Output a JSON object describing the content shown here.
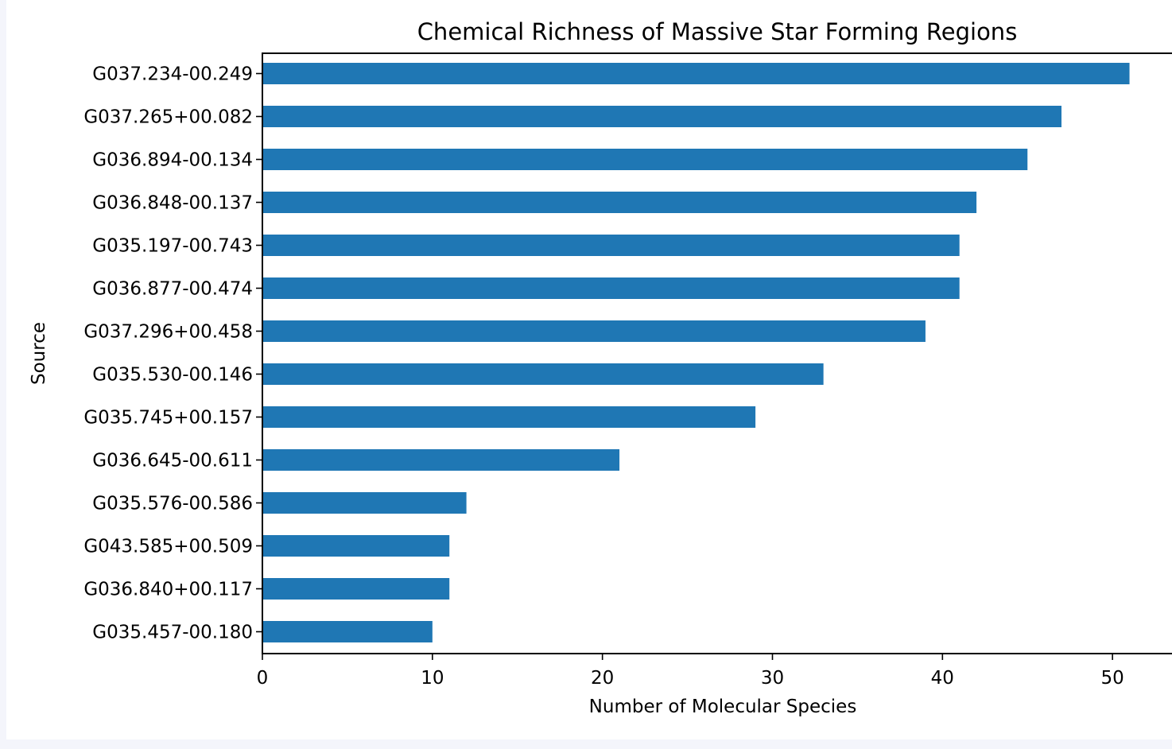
{
  "chart_data": {
    "type": "bar",
    "orientation": "horizontal",
    "title": "Chemical Richness of Massive Star Forming Regions",
    "xlabel": "Number of Molecular Species",
    "ylabel": "Source",
    "xlim": [
      0,
      53.5
    ],
    "xticks": [
      0,
      10,
      20,
      30,
      40,
      50
    ],
    "grid": false,
    "bar_color": "#1f77b4",
    "categories": [
      "G037.234-00.249",
      "G037.265+00.082",
      "G036.894-00.134",
      "G036.848-00.137",
      "G035.197-00.743",
      "G036.877-00.474",
      "G037.296+00.458",
      "G035.530-00.146",
      "G035.745+00.157",
      "G036.645-00.611",
      "G035.576-00.586",
      "G043.585+00.509",
      "G036.840+00.117",
      "G035.457-00.180"
    ],
    "values": [
      51,
      47,
      45,
      42,
      41,
      41,
      39,
      33,
      29,
      21,
      12,
      11,
      11,
      10
    ]
  }
}
